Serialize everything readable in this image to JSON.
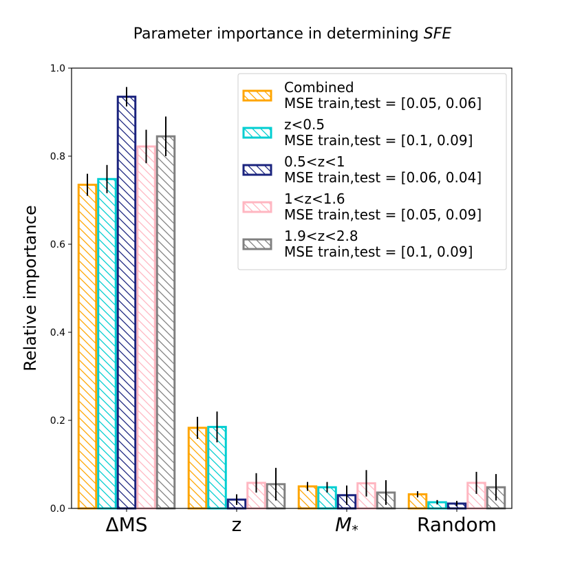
{
  "chart_data": {
    "type": "bar",
    "title": "Parameter importance in determining ",
    "title_italic": "SFE",
    "xlabel": "",
    "ylabel": "Relative importance",
    "ylim": [
      0.0,
      1.0
    ],
    "yticks": [
      "0.0",
      "0.2",
      "0.4",
      "0.6",
      "0.8",
      "1.0"
    ],
    "ytick_values": [
      0.0,
      0.2,
      0.4,
      0.6,
      0.8,
      1.0
    ],
    "categories": [
      "ΔMS",
      "z",
      "M*",
      "Random"
    ],
    "category_labels": [
      {
        "main": "ΔMS",
        "sub": ""
      },
      {
        "main": "z",
        "sub": ""
      },
      {
        "main": "M",
        "sub": "*"
      },
      {
        "main": "Random",
        "sub": ""
      }
    ],
    "legend_position": "top-right",
    "series": [
      {
        "name": "Combined",
        "mse": " MSE train,test = [0.05, 0.06]",
        "color": "#FFA500",
        "values": [
          0.735,
          0.183,
          0.05,
          0.032
        ],
        "errors": [
          0.025,
          0.025,
          0.01,
          0.007
        ]
      },
      {
        "name": "z<0.5",
        "mse": " MSE train,test = [0.1, 0.09]",
        "color": "#00CED1",
        "values": [
          0.748,
          0.185,
          0.048,
          0.014
        ],
        "errors": [
          0.032,
          0.035,
          0.012,
          0.005
        ]
      },
      {
        "name": "0.5<z<1",
        "mse": " MSE train,test = [0.06, 0.04]",
        "color": "#1A237E",
        "values": [
          0.935,
          0.02,
          0.03,
          0.011
        ],
        "errors": [
          0.022,
          0.012,
          0.022,
          0.006
        ]
      },
      {
        "name": "1<z<1.6",
        "mse": " MSE train,test = [0.05, 0.09]",
        "color": "#FFB6C1",
        "values": [
          0.822,
          0.058,
          0.057,
          0.058
        ],
        "errors": [
          0.038,
          0.022,
          0.03,
          0.025
        ]
      },
      {
        "name": "1.9<z<2.8",
        "mse": " MSE train,test = [0.1, 0.09]",
        "color": "#808080",
        "values": [
          0.845,
          0.055,
          0.036,
          0.048
        ],
        "errors": [
          0.045,
          0.037,
          0.028,
          0.03
        ]
      }
    ]
  }
}
